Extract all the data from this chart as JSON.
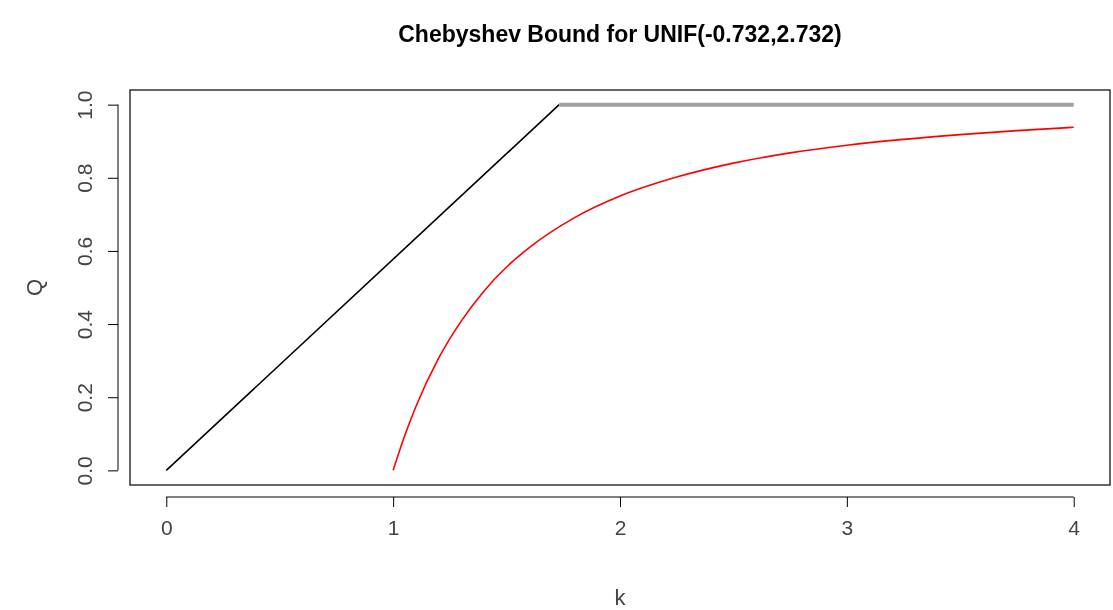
{
  "chart_data": {
    "type": "line",
    "title": "Chebyshev Bound for UNIF(-0.732,2.732)",
    "xlabel": "k",
    "ylabel": "Q",
    "xlim": [
      -0.16,
      4.16
    ],
    "ylim": [
      -0.04,
      1.04
    ],
    "xticks": [
      0,
      1,
      2,
      3,
      4
    ],
    "yticks": [
      {
        "value": 0,
        "label": "0.0"
      },
      {
        "value": 0.2,
        "label": "0.2"
      },
      {
        "value": 0.4,
        "label": "0.4"
      },
      {
        "value": 0.6,
        "label": "0.6"
      },
      {
        "value": 0.8,
        "label": "0.8"
      },
      {
        "value": 1,
        "label": "1.0"
      }
    ],
    "grid": false,
    "marker": "none",
    "line_style": "solid",
    "series": [
      {
        "color": "#000000",
        "x": [
          0,
          1.732
        ],
        "values": [
          0,
          1
        ]
      },
      {
        "color": "#a0a0a0",
        "x": [
          1.732,
          4
        ],
        "values": [
          1,
          1
        ]
      },
      {
        "color": "#ff0000",
        "x": [
          1,
          1.05,
          1.1,
          1.2,
          1.3,
          1.4,
          1.5,
          1.6,
          1.8,
          2,
          2.25,
          2.5,
          2.75,
          3,
          3.25,
          3.5,
          3.75,
          4
        ],
        "values": [
          0,
          0.093,
          0.174,
          0.306,
          0.408,
          0.49,
          0.556,
          0.609,
          0.691,
          0.75,
          0.802,
          0.84,
          0.868,
          0.889,
          0.905,
          0.918,
          0.929,
          0.938
        ]
      }
    ]
  }
}
